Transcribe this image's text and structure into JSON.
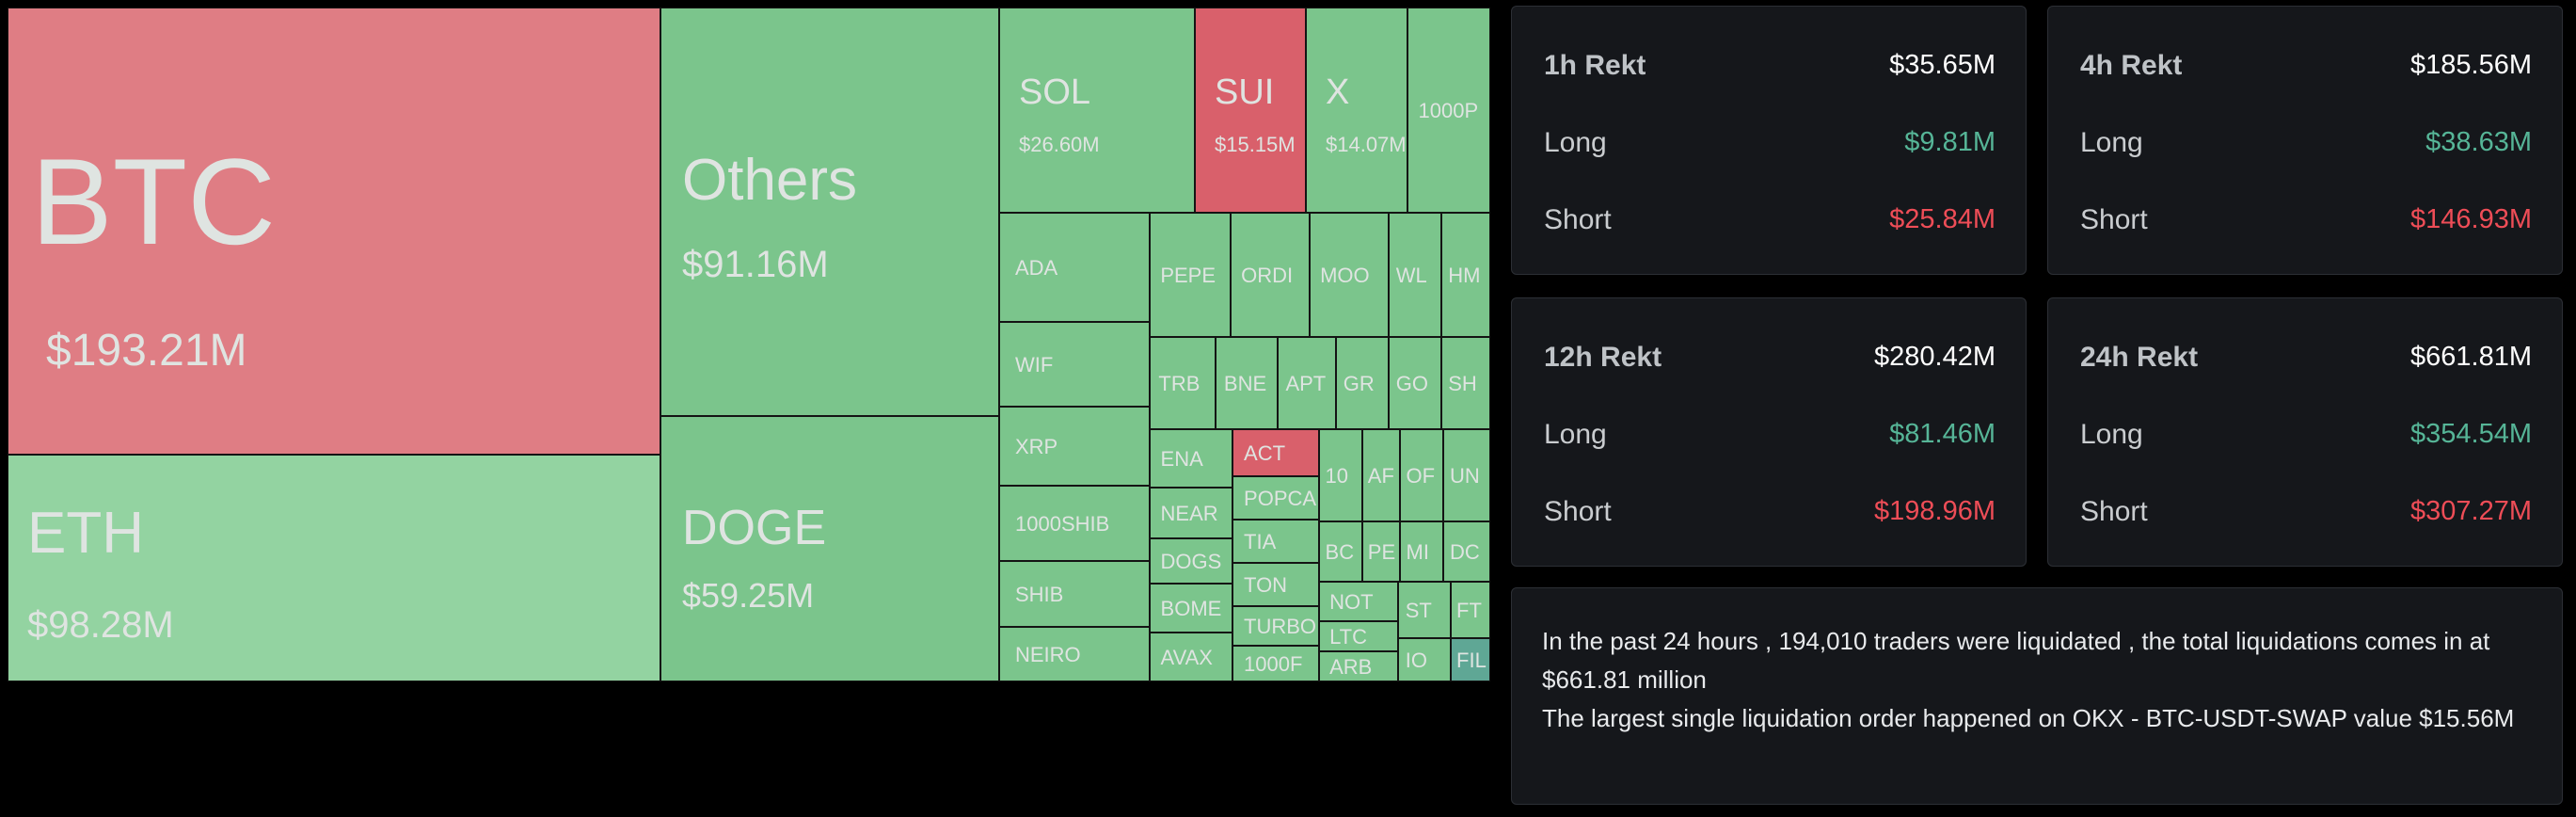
{
  "treemap": [
    {
      "id": "btc",
      "symbol": "BTC",
      "value": "$193.21M",
      "color": "r"
    },
    {
      "id": "eth",
      "symbol": "ETH",
      "value": "$98.28M",
      "color": "gl"
    },
    {
      "id": "others",
      "symbol": "Others",
      "value": "$91.16M",
      "color": "g"
    },
    {
      "id": "doge",
      "symbol": "DOGE",
      "value": "$59.25M",
      "color": "g"
    },
    {
      "id": "sol",
      "symbol": "SOL",
      "value": "$26.60M",
      "color": "g"
    },
    {
      "id": "sui",
      "symbol": "SUI",
      "value": "$15.15M",
      "color": "rs"
    },
    {
      "id": "x",
      "symbol": "X",
      "value": "$14.07M",
      "color": "g"
    },
    {
      "id": "1000p",
      "symbol": "1000P",
      "value": "",
      "color": "g"
    },
    {
      "id": "ada",
      "symbol": "ADA",
      "value": "",
      "color": "g"
    },
    {
      "id": "wif",
      "symbol": "WIF",
      "value": "",
      "color": "g"
    },
    {
      "id": "xrp",
      "symbol": "XRP",
      "value": "",
      "color": "g"
    },
    {
      "id": "1000shib",
      "symbol": "1000SHIB",
      "value": "",
      "color": "g"
    },
    {
      "id": "shib",
      "symbol": "SHIB",
      "value": "",
      "color": "g"
    },
    {
      "id": "neiro",
      "symbol": "NEIRO",
      "value": "",
      "color": "g"
    },
    {
      "id": "pepe",
      "symbol": "PEPE",
      "value": "",
      "color": "g"
    },
    {
      "id": "ordi",
      "symbol": "ORDI",
      "value": "",
      "color": "g"
    },
    {
      "id": "moo",
      "symbol": "MOO",
      "value": "",
      "color": "g"
    },
    {
      "id": "wl",
      "symbol": "WL",
      "value": "",
      "color": "g"
    },
    {
      "id": "hm",
      "symbol": "HM",
      "value": "",
      "color": "g"
    },
    {
      "id": "trb",
      "symbol": "TRB",
      "value": "",
      "color": "g"
    },
    {
      "id": "bne",
      "symbol": "BNE",
      "value": "",
      "color": "g"
    },
    {
      "id": "apt",
      "symbol": "APT",
      "value": "",
      "color": "g"
    },
    {
      "id": "gr",
      "symbol": "GR",
      "value": "",
      "color": "g"
    },
    {
      "id": "go",
      "symbol": "GO",
      "value": "",
      "color": "g"
    },
    {
      "id": "sh",
      "symbol": "SH",
      "value": "",
      "color": "g"
    },
    {
      "id": "ena",
      "symbol": "ENA",
      "value": "",
      "color": "g"
    },
    {
      "id": "act",
      "symbol": "ACT",
      "value": "",
      "color": "rs"
    },
    {
      "id": "popca",
      "symbol": "POPCA",
      "value": "",
      "color": "g"
    },
    {
      "id": "near",
      "symbol": "NEAR",
      "value": "",
      "color": "g"
    },
    {
      "id": "tia",
      "symbol": "TIA",
      "value": "",
      "color": "g"
    },
    {
      "id": "dogs",
      "symbol": "DOGS",
      "value": "",
      "color": "g"
    },
    {
      "id": "ton",
      "symbol": "TON",
      "value": "",
      "color": "g"
    },
    {
      "id": "bome",
      "symbol": "BOME",
      "value": "",
      "color": "g"
    },
    {
      "id": "turbo",
      "symbol": "TURBO",
      "value": "",
      "color": "g"
    },
    {
      "id": "avax",
      "symbol": "AVAX",
      "value": "",
      "color": "g"
    },
    {
      "id": "1000f",
      "symbol": "1000F",
      "value": "",
      "color": "g"
    },
    {
      "id": "10",
      "symbol": "10",
      "value": "",
      "color": "g"
    },
    {
      "id": "af",
      "symbol": "AF",
      "value": "",
      "color": "g"
    },
    {
      "id": "or",
      "symbol": "OF",
      "value": "",
      "color": "g"
    },
    {
      "id": "un",
      "symbol": "UN",
      "value": "",
      "color": "g"
    },
    {
      "id": "bc",
      "symbol": "BC",
      "value": "",
      "color": "g"
    },
    {
      "id": "pe",
      "symbol": "PE",
      "value": "",
      "color": "g"
    },
    {
      "id": "mi",
      "symbol": "MI",
      "value": "",
      "color": "g"
    },
    {
      "id": "dc",
      "symbol": "DC",
      "value": "",
      "color": "g"
    },
    {
      "id": "not",
      "symbol": "NOT",
      "value": "",
      "color": "g"
    },
    {
      "id": "st",
      "symbol": "ST",
      "value": "",
      "color": "g"
    },
    {
      "id": "ft",
      "symbol": "FT",
      "value": "",
      "color": "g"
    },
    {
      "id": "ltc",
      "symbol": "LTC",
      "value": "",
      "color": "g"
    },
    {
      "id": "arb",
      "symbol": "ARB",
      "value": "",
      "color": "g"
    },
    {
      "id": "io",
      "symbol": "IO",
      "value": "",
      "color": "g"
    },
    {
      "id": "fil",
      "symbol": "FIL",
      "value": "",
      "color": "t"
    }
  ],
  "cards": [
    {
      "id": "1h",
      "title": "1h Rekt",
      "total": "$35.65M",
      "long_label": "Long",
      "long": "$9.81M",
      "short_label": "Short",
      "short": "$25.84M"
    },
    {
      "id": "4h",
      "title": "4h Rekt",
      "total": "$185.56M",
      "long_label": "Long",
      "long": "$38.63M",
      "short_label": "Short",
      "short": "$146.93M"
    },
    {
      "id": "12h",
      "title": "12h Rekt",
      "total": "$280.42M",
      "long_label": "Long",
      "long": "$81.46M",
      "short_label": "Short",
      "short": "$198.96M"
    },
    {
      "id": "24h",
      "title": "24h Rekt",
      "total": "$661.81M",
      "long_label": "Long",
      "long": "$354.54M",
      "short_label": "Short",
      "short": "$307.27M"
    }
  ],
  "summary": {
    "line1": "In the past 24 hours , 194,010 traders were liquidated , the total liquidations comes in at $661.81 million",
    "line2": "The largest single liquidation order happened on OKX - BTC-USDT-SWAP value $15.56M"
  },
  "colors": {
    "long": "#56b597",
    "short": "#ee4d57",
    "card_bg": "#15171b",
    "green_tile": "#7bc58c",
    "red_tile": "#df7d84"
  }
}
